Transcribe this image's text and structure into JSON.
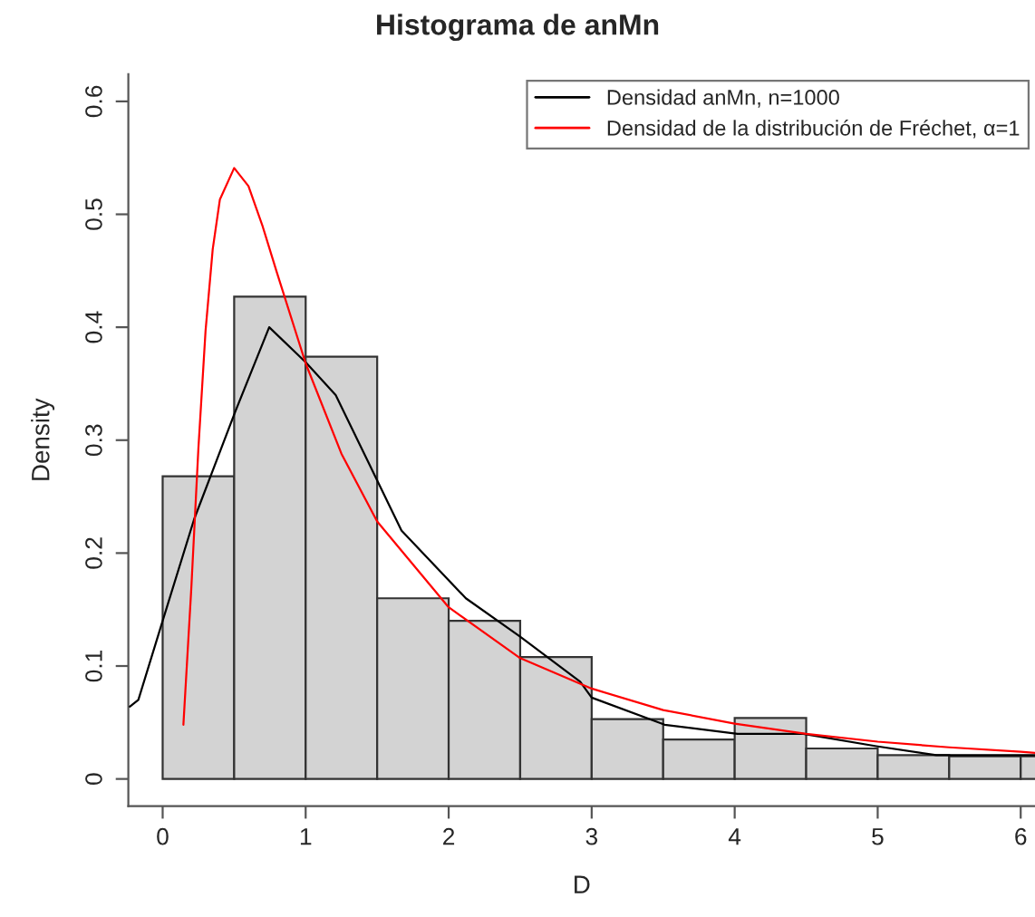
{
  "chart_data": {
    "type": "histogram",
    "title": "Histograma de anMn",
    "xlabel": "D",
    "ylabel": "Density",
    "bins": [
      0,
      0.5,
      1,
      1.5,
      2,
      2.5,
      3,
      3.5,
      4,
      4.5,
      5,
      5.5,
      6,
      6.5
    ],
    "values": [
      0.268,
      0.427,
      0.374,
      0.16,
      0.14,
      0.108,
      0.053,
      0.035,
      0.054,
      0.027,
      0.021,
      0.02,
      0.02
    ],
    "color": "#d3d3d3",
    "xlim": [
      -0.24,
      6.1
    ],
    "ylim": [
      -0.024,
      0.624
    ],
    "xticks": [
      0,
      1,
      2,
      3,
      4,
      5,
      6
    ],
    "yticks": [
      0,
      0.1,
      0.2,
      0.3,
      0.4,
      0.5,
      0.6
    ],
    "series": [
      {
        "type": "line",
        "name": "Densidad anMn, n=1000",
        "color": "#000000",
        "x": [
          -0.23,
          -0.17,
          0.0,
          0.22,
          0.51,
          0.745,
          1.0,
          1.21,
          1.67,
          2.12,
          2.5,
          2.92,
          3.0,
          3.51,
          4.02,
          4.48,
          4.99,
          5.41,
          6.0,
          6.1
        ],
        "values": [
          0.064,
          0.07,
          0.14,
          0.23,
          0.326,
          0.4,
          0.369,
          0.34,
          0.22,
          0.16,
          0.126,
          0.086,
          0.072,
          0.048,
          0.04,
          0.04,
          0.029,
          0.021,
          0.021,
          0.021
        ]
      },
      {
        "type": "line",
        "name": "Densidad de la distribución de Fréchet, α=1",
        "color": "#ff0000",
        "x": [
          0.145,
          0.2,
          0.25,
          0.3,
          0.35,
          0.4,
          0.5,
          0.6,
          0.7,
          0.8,
          1.0,
          1.25,
          1.5,
          2,
          2.5,
          3,
          3.5,
          4,
          4.5,
          5,
          5.5,
          6,
          6.1
        ],
        "values": [
          0.048,
          0.168,
          0.293,
          0.397,
          0.469,
          0.513,
          0.541,
          0.525,
          0.489,
          0.448,
          0.368,
          0.288,
          0.228,
          0.152,
          0.107,
          0.08,
          0.061,
          0.049,
          0.04,
          0.033,
          0.028,
          0.024,
          0.023
        ]
      }
    ],
    "legend": "top right",
    "grid": false
  }
}
